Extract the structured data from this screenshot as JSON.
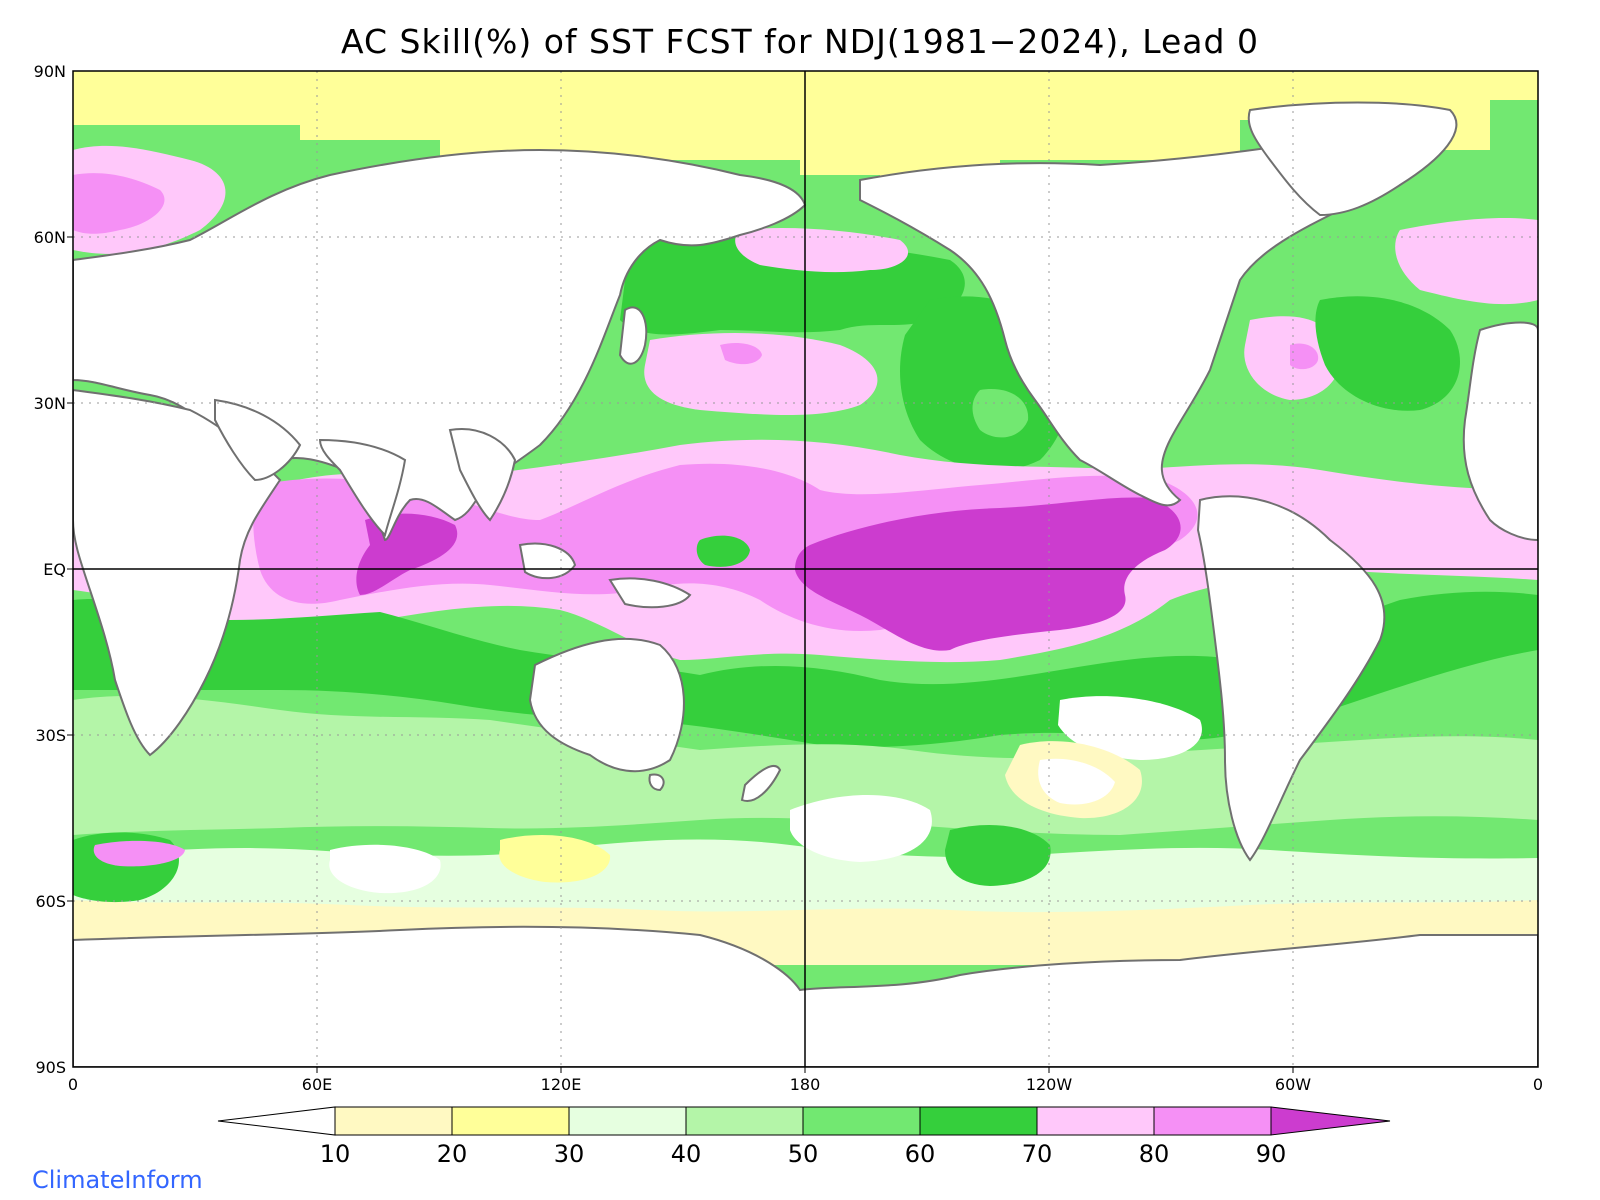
{
  "title": "AC Skill(%) of SST FCST for NDJ(1981−2024), Lead 0",
  "credit": "ClimateInform",
  "map": {
    "projection": "cylindrical-equidistant",
    "center_longitude": "180",
    "variable": "Anomaly correlation skill (%)",
    "lat_labels": [
      "90N",
      "60N",
      "30N",
      "EQ",
      "30S",
      "60S",
      "90S"
    ],
    "lon_labels": [
      "0",
      "60E",
      "120E",
      "180",
      "120W",
      "60W",
      "0"
    ],
    "grid": true,
    "land_color": "#ffffff",
    "coastline_color": "#707070",
    "features": [
      {
        "name": "equatorial-pacific-max",
        "level": "90+"
      },
      {
        "name": "indian-ocean-max",
        "level": "90+"
      },
      {
        "name": "arctic-low-skill",
        "level": "20-30"
      },
      {
        "name": "southern-ocean-low-skill",
        "level": "10-30"
      }
    ]
  },
  "colorbar": {
    "levels": [
      "10",
      "20",
      "30",
      "40",
      "50",
      "60",
      "70",
      "80",
      "90"
    ],
    "colors": [
      "#ffffff",
      "#fff9c2",
      "#ffff99",
      "#e6ffe0",
      "#b4f5a8",
      "#72e871",
      "#35cf3c",
      "#ffc8fa",
      "#f590f5",
      "#cc3ccf"
    ]
  }
}
